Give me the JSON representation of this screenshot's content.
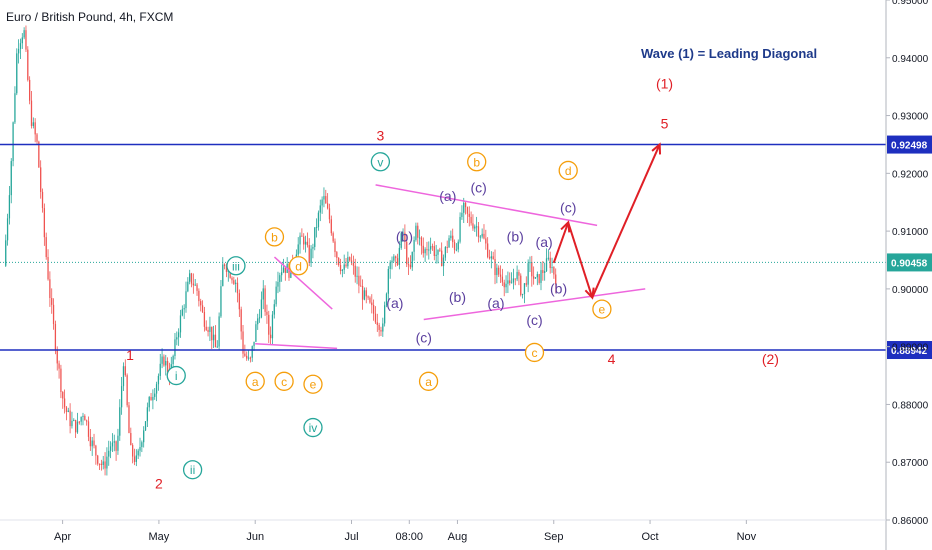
{
  "chart_data": {
    "type": "candlestick",
    "title": "Euro / British Pound, 4h, FXCM",
    "annotation_title": "Wave (1) = Leading Diagonal",
    "x_labels": [
      "Apr",
      "May",
      "Jun",
      "Jul",
      "08:00",
      "Aug",
      "Sep",
      "Oct",
      "Nov"
    ],
    "y_ticks": [
      "0.95000",
      "0.94000",
      "0.93000",
      "0.92000",
      "0.91000",
      "0.90000",
      "0.89000",
      "0.88000",
      "0.87000",
      "0.86000"
    ],
    "ylim": [
      0.86,
      0.95
    ],
    "levels": [
      {
        "value": 0.92498,
        "label": "0.92498",
        "color": "#1e2fbf"
      },
      {
        "value": 0.88942,
        "label": "0.88942",
        "color": "#1e2fbf"
      }
    ],
    "current_price": {
      "value": 0.90458,
      "label": "0.90458",
      "color": "#26a69a"
    },
    "series_colors": {
      "up": "#26a69a",
      "down": "#ef5350",
      "channel": "#ee66dd",
      "projection": "#e01f26"
    },
    "price_path": [
      [
        0.904,
        0.92
      ],
      [
        0.942,
        0.945
      ],
      [
        0.93,
        0.925
      ],
      [
        0.91,
        0.898
      ],
      [
        0.888,
        0.88
      ],
      [
        0.877,
        0.876
      ],
      [
        0.879,
        0.874
      ],
      [
        0.871,
        0.869
      ],
      [
        0.873,
        0.872
      ],
      [
        0.888,
        0.872
      ],
      [
        0.87,
        0.876
      ],
      [
        0.881,
        0.884
      ],
      [
        0.888,
        0.885
      ],
      [
        0.892,
        0.897
      ],
      [
        0.902,
        0.9
      ],
      [
        0.895,
        0.893
      ],
      [
        0.889,
        0.905
      ],
      [
        0.903,
        0.901
      ],
      [
        0.889,
        0.887
      ],
      [
        0.894,
        0.899
      ],
      [
        0.891,
        0.902
      ],
      [
        0.904,
        0.903
      ],
      [
        0.907,
        0.909
      ],
      [
        0.905,
        0.911
      ],
      [
        0.916,
        0.912
      ],
      [
        0.906,
        0.903
      ],
      [
        0.905,
        0.902
      ],
      [
        0.899,
        0.897
      ],
      [
        0.895,
        0.893
      ],
      [
        0.906,
        0.904
      ],
      [
        0.91,
        0.902
      ],
      [
        0.911,
        0.906
      ],
      [
        0.908,
        0.906
      ],
      [
        0.905,
        0.909
      ],
      [
        0.907,
        0.914
      ],
      [
        0.912,
        0.911
      ],
      [
        0.909,
        0.906
      ],
      [
        0.903,
        0.902
      ],
      [
        0.9,
        0.903
      ],
      [
        0.899,
        0.904
      ],
      [
        0.901,
        0.903
      ],
      [
        0.905,
        0.902
      ]
    ],
    "wave_labels": [
      {
        "t": "1",
        "i": 13,
        "p": 0.8885,
        "c": "#e01f26",
        "s": "plain"
      },
      {
        "t": "2",
        "i": 16,
        "p": 0.8662,
        "c": "#e01f26",
        "s": "plain"
      },
      {
        "t": "3",
        "i": 39,
        "p": 0.9265,
        "c": "#e01f26",
        "s": "plain"
      },
      {
        "t": "4",
        "i": 63,
        "p": 0.8878,
        "c": "#e01f26",
        "s": "plain"
      },
      {
        "t": "5",
        "i": 68.5,
        "p": 0.9285,
        "c": "#e01f26",
        "s": "plain"
      },
      {
        "t": "(1)",
        "i": 68.5,
        "p": 0.9355,
        "c": "#e01f26",
        "s": "plain"
      },
      {
        "t": "(2)",
        "i": 79.5,
        "p": 0.8878,
        "c": "#e01f26",
        "s": "plain"
      },
      {
        "t": "i",
        "i": 17.8,
        "p": 0.885,
        "c": "#26a69a",
        "s": "circle"
      },
      {
        "t": "ii",
        "i": 19.5,
        "p": 0.8687,
        "c": "#26a69a",
        "s": "circle"
      },
      {
        "t": "iii",
        "i": 24,
        "p": 0.904,
        "c": "#26a69a",
        "s": "circle"
      },
      {
        "t": "iv",
        "i": 32,
        "p": 0.876,
        "c": "#26a69a",
        "s": "circle"
      },
      {
        "t": "v",
        "i": 39,
        "p": 0.922,
        "c": "#26a69a",
        "s": "circle"
      },
      {
        "t": "a",
        "i": 26,
        "p": 0.884,
        "c": "#f59e0b",
        "s": "circle"
      },
      {
        "t": "b",
        "i": 28,
        "p": 0.909,
        "c": "#f59e0b",
        "s": "circle"
      },
      {
        "t": "c",
        "i": 29,
        "p": 0.884,
        "c": "#f59e0b",
        "s": "circle"
      },
      {
        "t": "d",
        "i": 30.5,
        "p": 0.904,
        "c": "#f59e0b",
        "s": "circle"
      },
      {
        "t": "e",
        "i": 32,
        "p": 0.8835,
        "c": "#f59e0b",
        "s": "circle"
      },
      {
        "t": "a",
        "i": 44,
        "p": 0.884,
        "c": "#f59e0b",
        "s": "circle"
      },
      {
        "t": "b",
        "i": 49,
        "p": 0.922,
        "c": "#f59e0b",
        "s": "circle"
      },
      {
        "t": "c",
        "i": 55,
        "p": 0.889,
        "c": "#f59e0b",
        "s": "circle"
      },
      {
        "t": "d",
        "i": 58.5,
        "p": 0.9205,
        "c": "#f59e0b",
        "s": "circle"
      },
      {
        "t": "e",
        "i": 62,
        "p": 0.8965,
        "c": "#f59e0b",
        "s": "circle"
      },
      {
        "t": "(a)",
        "i": 40.5,
        "p": 0.8975,
        "c": "#5b3f9e",
        "s": "plain"
      },
      {
        "t": "(b)",
        "i": 41.5,
        "p": 0.909,
        "c": "#5b3f9e",
        "s": "plain"
      },
      {
        "t": "(c)",
        "i": 43.5,
        "p": 0.8915,
        "c": "#5b3f9e",
        "s": "plain"
      },
      {
        "t": "(a)",
        "i": 46,
        "p": 0.916,
        "c": "#5b3f9e",
        "s": "plain"
      },
      {
        "t": "(b)",
        "i": 47,
        "p": 0.8985,
        "c": "#5b3f9e",
        "s": "plain"
      },
      {
        "t": "(c)",
        "i": 49.2,
        "p": 0.9175,
        "c": "#5b3f9e",
        "s": "plain"
      },
      {
        "t": "(a)",
        "i": 51,
        "p": 0.8975,
        "c": "#5b3f9e",
        "s": "plain"
      },
      {
        "t": "(b)",
        "i": 53,
        "p": 0.909,
        "c": "#5b3f9e",
        "s": "plain"
      },
      {
        "t": "(c)",
        "i": 55,
        "p": 0.8945,
        "c": "#5b3f9e",
        "s": "plain"
      },
      {
        "t": "(a)",
        "i": 56,
        "p": 0.908,
        "c": "#5b3f9e",
        "s": "plain"
      },
      {
        "t": "(b)",
        "i": 57.5,
        "p": 0.9,
        "c": "#5b3f9e",
        "s": "plain"
      },
      {
        "t": "(c)",
        "i": 58.5,
        "p": 0.914,
        "c": "#5b3f9e",
        "s": "plain"
      }
    ],
    "channel_lines": [
      [
        [
          26,
          0.8905
        ],
        [
          34.5,
          0.8897
        ]
      ],
      [
        [
          28,
          0.9055
        ],
        [
          34,
          0.8965
        ]
      ],
      [
        [
          38.5,
          0.918
        ],
        [
          61.5,
          0.911
        ]
      ],
      [
        [
          43.5,
          0.8947
        ],
        [
          66.5,
          0.9
        ]
      ]
    ],
    "projection_path": [
      [
        57,
        0.9045
      ],
      [
        58.5,
        0.9115
      ],
      [
        61,
        0.8985
      ],
      [
        68,
        0.925
      ]
    ]
  }
}
